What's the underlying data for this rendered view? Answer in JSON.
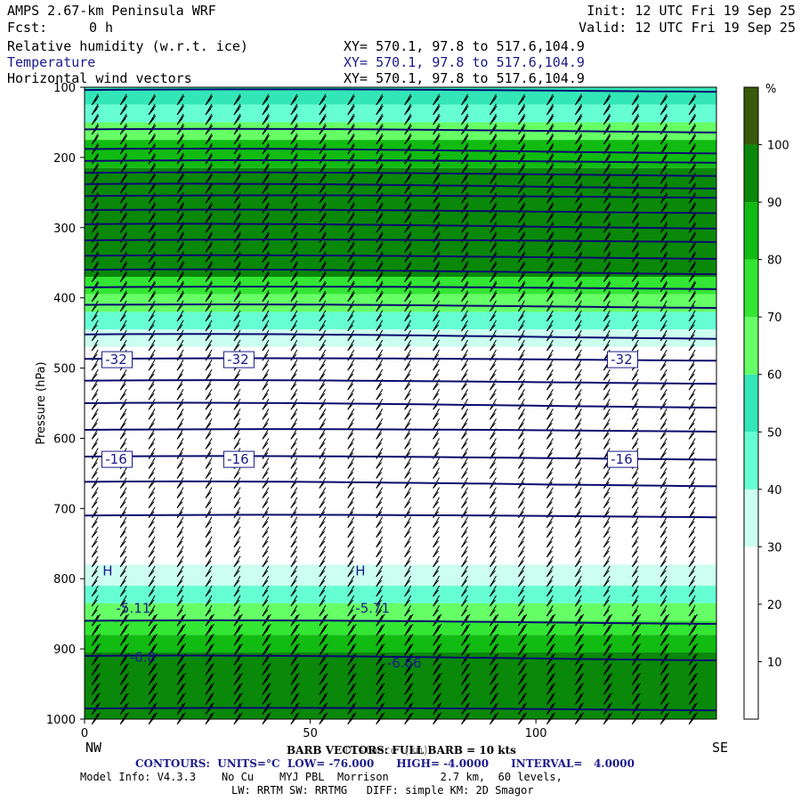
{
  "header": {
    "model": "AMPS 2.67-km Peninsula WRF",
    "fcst_label": "Fcst:",
    "fcst_value": "0 h",
    "init": "Init: 12 UTC Fri 19 Sep 25",
    "valid": "Valid: 12 UTC Fri 19 Sep 25",
    "fields": [
      {
        "name": "Relative humidity (w.r.t. ice)",
        "xy": "XY= 570.1, 97.8 to 517.6,104.9"
      },
      {
        "name": "Temperature",
        "xy": "XY= 570.1, 97.8 to 517.6,104.9"
      },
      {
        "name": "Horizontal wind vectors",
        "xy": "XY= 570.1, 97.8 to 517.6,104.9"
      }
    ]
  },
  "footer": {
    "left_end": "NW",
    "right_end": "SE",
    "barb_line": "BARB VECTORS: FULL BARB = 10 kts",
    "distance_label": "Distance (km)",
    "contours": "CONTOURS:  UNITS=°C  LOW= -76.000      HIGH= -4.0000      INTERVAL=   4.0000",
    "model_info": "Model Info: V4.3.3    No Cu    MYJ PBL  Morrison        2.7 km,  60 levels,",
    "physics": "LW: RRTM SW: RRTMG   DIFF: simple KM: 2D Smagor"
  },
  "chart_data": {
    "type": "heatmap",
    "xlabel": "",
    "ylabel": "Pressure (hPa)",
    "xlim": [
      0,
      140
    ],
    "ylim": [
      1000,
      100
    ],
    "x_ticks": [
      "0",
      "50",
      "100"
    ],
    "y_ticks": [
      "100",
      "200",
      "300",
      "400",
      "500",
      "600",
      "700",
      "800",
      "900",
      "1000"
    ],
    "colorbar": {
      "unit": "%",
      "levels": [
        0,
        10,
        20,
        30,
        40,
        50,
        60,
        70,
        80,
        90,
        100
      ],
      "tick_labels": [
        "10",
        "20",
        "30",
        "40",
        "50",
        "60",
        "70",
        "80",
        "90",
        "100"
      ],
      "colors": [
        "#ffffff",
        "#ffffff",
        "#ffffff",
        "#ccfff0",
        "#66ffd4",
        "#33e6b8",
        "#66ff66",
        "#33e633",
        "#11bb11",
        "#0a880a",
        "#3a5a0a"
      ]
    },
    "rh_bands": [
      {
        "p_top": 100,
        "p_bottom": 125,
        "rh": 55
      },
      {
        "p_top": 125,
        "p_bottom": 150,
        "rh": 45
      },
      {
        "p_top": 150,
        "p_bottom": 175,
        "rh": 65
      },
      {
        "p_top": 175,
        "p_bottom": 215,
        "rh": 82
      },
      {
        "p_top": 215,
        "p_bottom": 370,
        "rh": 92
      },
      {
        "p_top": 370,
        "p_bottom": 395,
        "rh": 78
      },
      {
        "p_top": 395,
        "p_bottom": 420,
        "rh": 65
      },
      {
        "p_top": 420,
        "p_bottom": 445,
        "rh": 45
      },
      {
        "p_top": 445,
        "p_bottom": 470,
        "rh": 32
      },
      {
        "p_top": 470,
        "p_bottom": 780,
        "rh": 10
      },
      {
        "p_top": 780,
        "p_bottom": 810,
        "rh": 32
      },
      {
        "p_top": 810,
        "p_bottom": 835,
        "rh": 45
      },
      {
        "p_top": 835,
        "p_bottom": 860,
        "rh": 65
      },
      {
        "p_top": 860,
        "p_bottom": 880,
        "rh": 78
      },
      {
        "p_top": 880,
        "p_bottom": 905,
        "rh": 88
      },
      {
        "p_top": 905,
        "p_bottom": 1000,
        "rh": 95
      }
    ],
    "isotherm_pressures": [
      104,
      160,
      188,
      205,
      222,
      238,
      255,
      275,
      295,
      318,
      340,
      360,
      385,
      410,
      452,
      487,
      518,
      550,
      588,
      626,
      662,
      710,
      860,
      910,
      985
    ],
    "contour_labels": [
      {
        "x": 7,
        "p": 488,
        "text": "-32"
      },
      {
        "x": 34,
        "p": 488,
        "text": "-32"
      },
      {
        "x": 119,
        "p": 488,
        "text": "-32"
      },
      {
        "x": 7,
        "p": 630,
        "text": "-16"
      },
      {
        "x": 34,
        "p": 630,
        "text": "-16"
      },
      {
        "x": 119,
        "p": 630,
        "text": "-16"
      },
      {
        "x": 7,
        "p": 842,
        "text": "-5.11"
      },
      {
        "x": 60,
        "p": 842,
        "text": "-5.71"
      },
      {
        "x": 10,
        "p": 912,
        "text": "-6.8"
      },
      {
        "x": 67,
        "p": 920,
        "text": "-6.66"
      }
    ],
    "high_markers": [
      {
        "x": 4,
        "p": 795,
        "text": "H"
      },
      {
        "x": 60,
        "p": 795,
        "text": "H"
      }
    ]
  }
}
